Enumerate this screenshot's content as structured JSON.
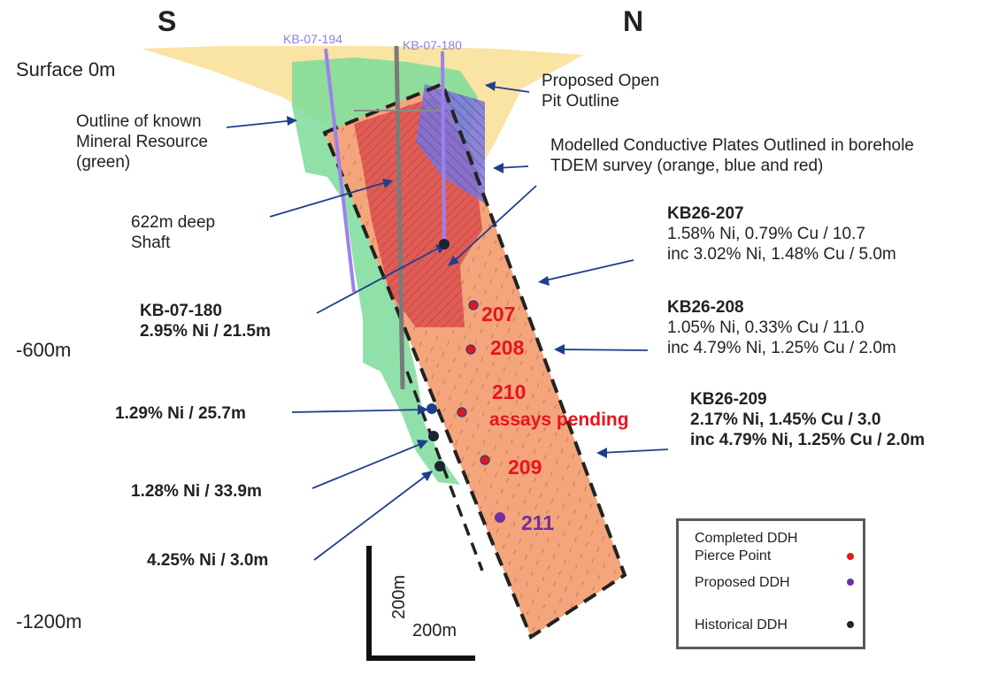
{
  "directions": {
    "south": "S",
    "north": "N"
  },
  "depths": {
    "surface": "Surface 0m",
    "mid": "-600m",
    "deep": "-1200m"
  },
  "drillholes": {
    "hole_194": "KB-07-194",
    "hole_180": "KB-07-180"
  },
  "annotations": {
    "open_pit": [
      "Proposed Open",
      "Pit Outline"
    ],
    "mineral_resource": [
      "Outline of known",
      "Mineral Resource",
      "(green)"
    ],
    "conductive_plates": [
      "Modelled Conductive Plates Outlined in borehole",
      "TDEM survey (orange, blue and red)"
    ],
    "shaft": [
      "622m deep",
      "Shaft"
    ]
  },
  "historical_intercepts": {
    "kb07_180": {
      "title": "KB-07-180",
      "result": "2.95% Ni / 21.5m"
    },
    "hit_1": "1.29% Ni / 25.7m",
    "hit_2": "1.28% Ni / 33.9m",
    "hit_3": "4.25% Ni / 3.0m"
  },
  "new_results": {
    "kb26_207": {
      "title": "KB26-207",
      "line1": "1.58% Ni, 0.79% Cu / 10.7",
      "line2": "inc 3.02% Ni, 1.48% Cu / 5.0m"
    },
    "kb26_208": {
      "title": "KB26-208",
      "line1": "1.05% Ni, 0.33% Cu / 11.0",
      "line2": "inc 4.79% Ni, 1.25% Cu / 2.0m"
    },
    "kb26_209": {
      "title": "KB26-209",
      "line1": "2.17% Ni, 1.45% Cu / 3.0",
      "line2": "inc 4.79% Ni, 1.25% Cu / 2.0m"
    }
  },
  "pierce_labels": {
    "p207": "207",
    "p208": "208",
    "p210": "210",
    "pending": "assays pending",
    "p209": "209",
    "p211": "211"
  },
  "scale": {
    "vertical": "200m",
    "horizontal": "200m"
  },
  "legend": {
    "completed": [
      "Completed DDH",
      "Pierce Point"
    ],
    "proposed": "Proposed DDH",
    "historical": "Historical DDH"
  },
  "colors": {
    "completed_dot": "#e8141b",
    "proposed_dot": "#7030a0",
    "historical_dot": "#1c2333",
    "arrow": "#1f3f8c",
    "resource_green": "#7ddc9a",
    "plate_orange": "#f4a57b",
    "plate_red": "#dc5050",
    "plate_blue": "#7b74d8",
    "pit_yellow": "#f7dd8c"
  }
}
